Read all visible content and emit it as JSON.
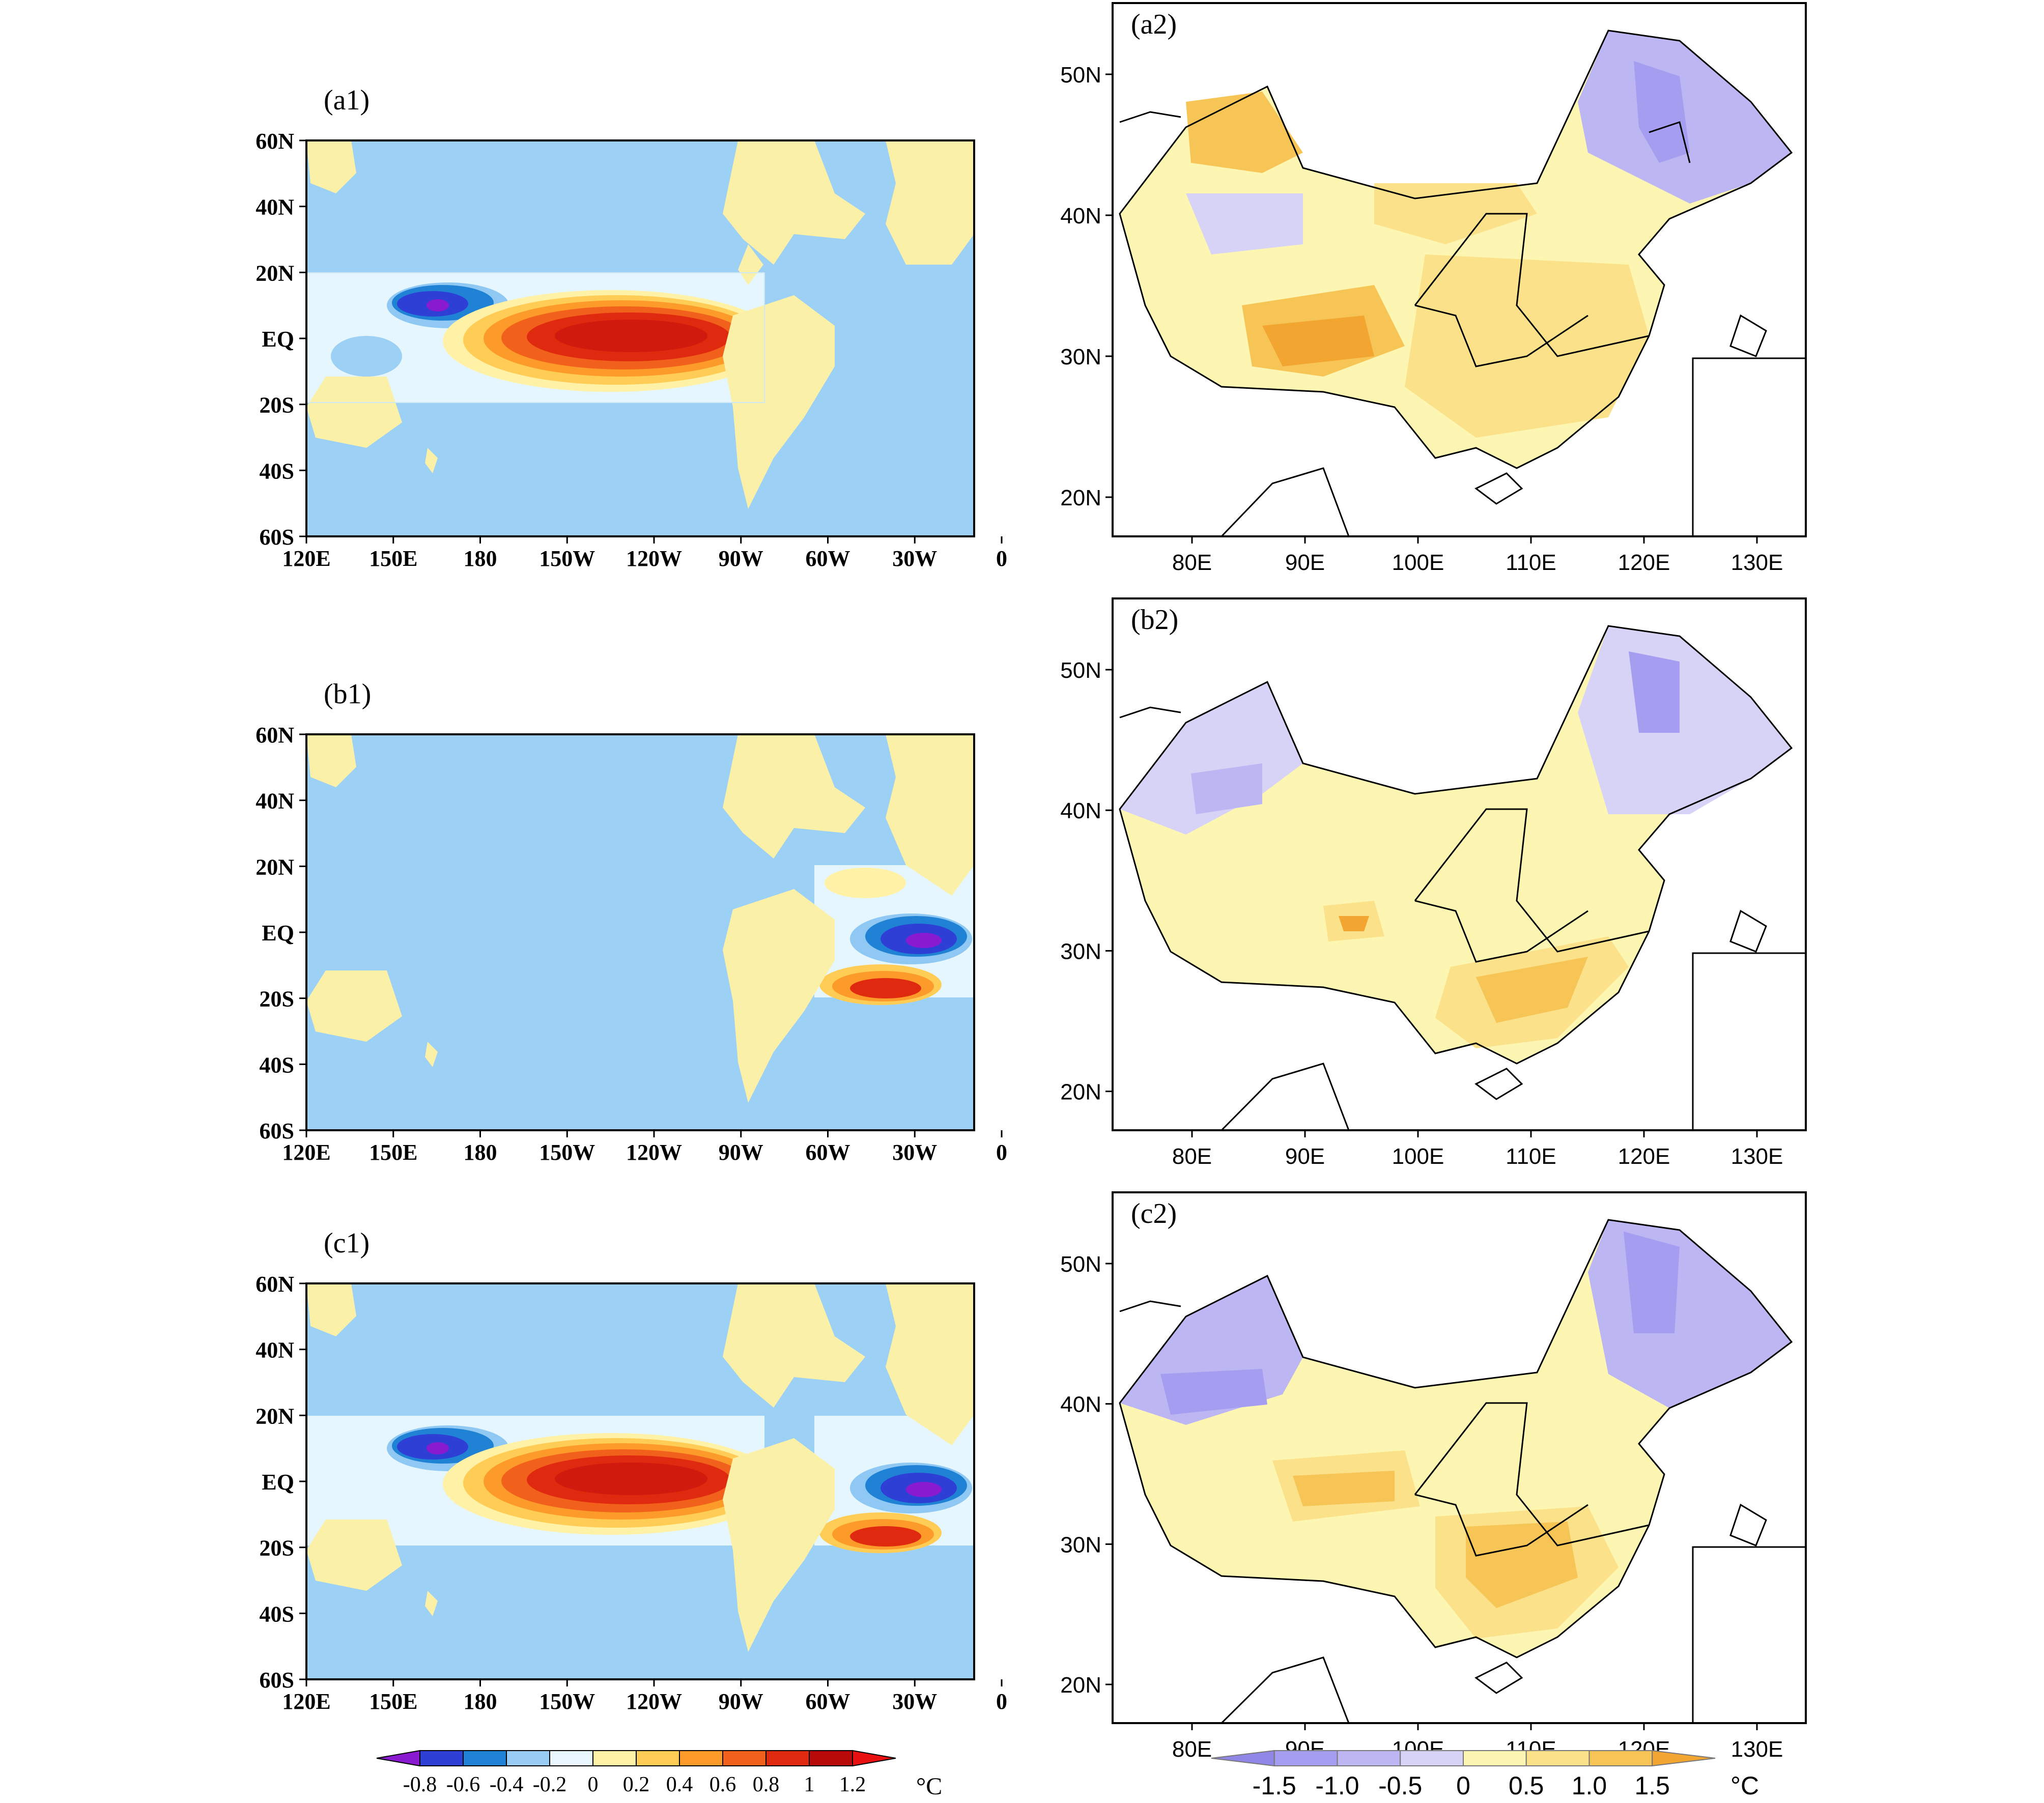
{
  "panels": [
    {
      "id": "a1",
      "label": "(a1)",
      "kind": "global",
      "boxes": [
        "pacific"
      ]
    },
    {
      "id": "b1",
      "label": "(b1)",
      "kind": "global",
      "boxes": [
        "atlantic"
      ]
    },
    {
      "id": "c1",
      "label": "(c1)",
      "kind": "global",
      "boxes": [
        "pacific",
        "atlantic"
      ]
    },
    {
      "id": "a2",
      "label": "(a2)",
      "kind": "china",
      "pattern": "a"
    },
    {
      "id": "b2",
      "label": "(b2)",
      "kind": "china",
      "pattern": "b"
    },
    {
      "id": "c2",
      "label": "(c2)",
      "kind": "china",
      "pattern": "c"
    }
  ],
  "global_axes": {
    "y_ticks": [
      "60N",
      "40N",
      "20N",
      "EQ",
      "20S",
      "40S",
      "60S"
    ],
    "x_ticks": [
      "120E",
      "150E",
      "180",
      "150W",
      "120W",
      "90W",
      "60W",
      "30W",
      "0"
    ]
  },
  "china_axes": {
    "y_ticks": [
      "50N",
      "40N",
      "30N",
      "20N"
    ],
    "x_ticks": [
      "80E",
      "90E",
      "100E",
      "110E",
      "120E",
      "130E"
    ]
  },
  "colorbar_sst": {
    "labels": [
      "-0.8",
      "-0.6",
      "-0.4",
      "-0.2",
      "0",
      "0.2",
      "0.4",
      "0.6",
      "0.8",
      "1",
      "1.2"
    ],
    "unit": "°C",
    "colors": [
      "#8a1ad0",
      "#2e3fd6",
      "#1f82d4",
      "#99ccf4",
      "#e8f7ff",
      "#fff1a6",
      "#ffcc55",
      "#fd9b2a",
      "#f2611c",
      "#e02a10",
      "#b80a08",
      "#e81010"
    ]
  },
  "colorbar_temp": {
    "labels": [
      "-1.5",
      "-1.0",
      "-0.5",
      "0",
      "0.5",
      "1.0",
      "1.5"
    ],
    "unit": "°C",
    "colors": [
      "#8f86e6",
      "#a59df0",
      "#bcb6f2",
      "#d6d3f6",
      "#fdf6b2",
      "#fbe189",
      "#f7c456",
      "#f3a531"
    ]
  }
}
